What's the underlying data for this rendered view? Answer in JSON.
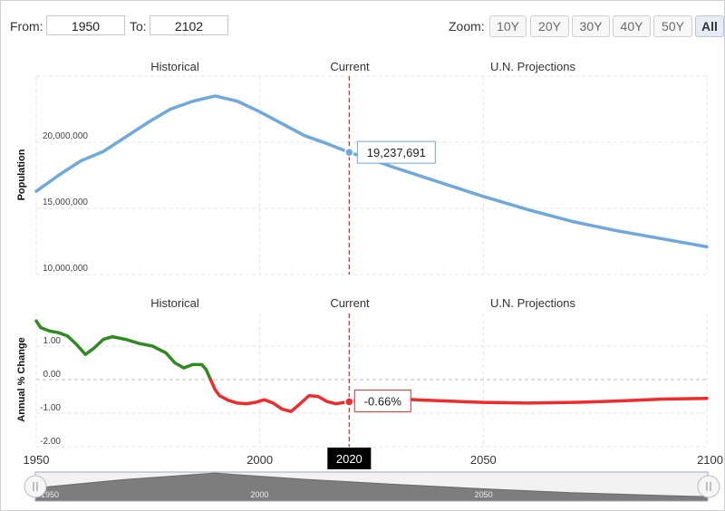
{
  "range": {
    "from_label": "From:",
    "from_value": "1950",
    "to_label": "To:",
    "to_value": "2102"
  },
  "zoom": {
    "label": "Zoom:",
    "buttons": [
      "10Y",
      "20Y",
      "30Y",
      "40Y",
      "50Y",
      "All"
    ],
    "active": "All"
  },
  "colors": {
    "population_line": "#6fa8dc",
    "growth_positive": "#2e8b1f",
    "growth_negative": "#ef2b2b",
    "current_marker": "#cc2a2a",
    "navigator_fill": "#7d7d7d"
  },
  "chart_data": [
    {
      "type": "line",
      "section_labels": [
        "Historical",
        "Current",
        "U.N. Projections"
      ],
      "ylabel": "Population",
      "yticks": [
        "10,000,000",
        "15,000,000",
        "20,000,000"
      ],
      "ylim": [
        10000000,
        25500000
      ],
      "xlim": [
        1950,
        2100
      ],
      "current_year": 2020,
      "tooltip": "19,237,691",
      "series": [
        {
          "x": [
            1950,
            1955,
            1960,
            1965,
            1970,
            1975,
            1980,
            1985,
            1990,
            1995,
            2000,
            2005,
            2010,
            2015,
            2020,
            2025,
            2030,
            2040,
            2050,
            2060,
            2070,
            2080,
            2090,
            2100
          ],
          "values": [
            16300000,
            17500000,
            18600000,
            19300000,
            20400000,
            21500000,
            22500000,
            23100000,
            23500000,
            23100000,
            22300000,
            21400000,
            20500000,
            19900000,
            19237691,
            18700000,
            18100000,
            17000000,
            15900000,
            14900000,
            14000000,
            13300000,
            12700000,
            12100000
          ]
        }
      ]
    },
    {
      "type": "line",
      "section_labels": [
        "Historical",
        "Current",
        "U.N. Projections"
      ],
      "ylabel": "Annual % Change",
      "yticks": [
        "1.00",
        "0.00",
        "-1.00",
        "-2.00"
      ],
      "ylim": [
        -2.1,
        2.0
      ],
      "xlim": [
        1950,
        2100
      ],
      "xticks": [
        "1950",
        "2000",
        "2050",
        "2100"
      ],
      "current_year": 2020,
      "current_label": "2020",
      "tooltip": "-0.66%",
      "series": [
        {
          "x": [
            1950,
            1951,
            1953,
            1955,
            1957,
            1959,
            1961,
            1963,
            1965,
            1967,
            1970,
            1973,
            1976,
            1979,
            1981,
            1983,
            1985,
            1987,
            1988,
            1989,
            1990,
            1991,
            1993,
            1995,
            1997,
            1999,
            2001,
            2003,
            2005,
            2007,
            2009,
            2011,
            2013,
            2015,
            2017,
            2019,
            2020,
            2025,
            2030,
            2035,
            2040,
            2050,
            2060,
            2070,
            2080,
            2090,
            2100
          ],
          "values": [
            1.75,
            1.55,
            1.45,
            1.4,
            1.3,
            1.05,
            0.75,
            0.95,
            1.2,
            1.28,
            1.2,
            1.08,
            1.0,
            0.8,
            0.5,
            0.35,
            0.45,
            0.45,
            0.3,
            0.0,
            -0.3,
            -0.48,
            -0.62,
            -0.7,
            -0.72,
            -0.68,
            -0.6,
            -0.7,
            -0.88,
            -0.95,
            -0.72,
            -0.48,
            -0.5,
            -0.65,
            -0.72,
            -0.68,
            -0.66,
            -0.54,
            -0.56,
            -0.6,
            -0.63,
            -0.68,
            -0.7,
            -0.68,
            -0.64,
            -0.58,
            -0.56
          ]
        }
      ]
    }
  ],
  "navigator": {
    "ticks": [
      "1950",
      "2000",
      "2050"
    ],
    "x": [
      1950,
      1970,
      1990,
      2010,
      2030,
      2050,
      2070,
      2090,
      2100
    ],
    "values": [
      16300000,
      20400000,
      23500000,
      20500000,
      18100000,
      15900000,
      14000000,
      12700000,
      12100000
    ]
  }
}
